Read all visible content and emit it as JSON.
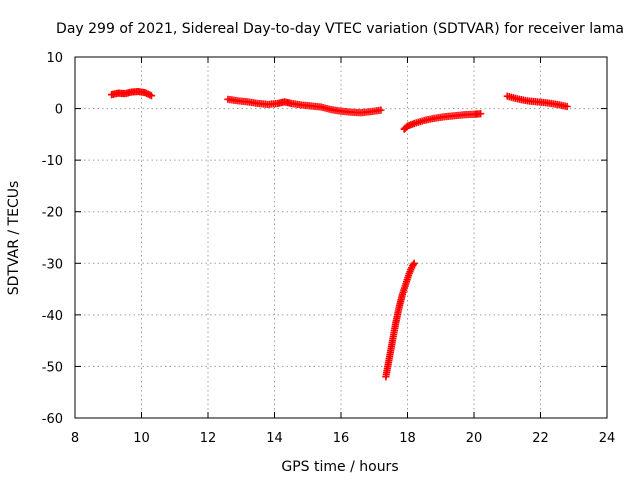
{
  "chart_data": {
    "type": "scatter",
    "title": "Day 299 of 2021, Sidereal Day-to-day VTEC variation (SDTVAR) for receiver lama",
    "xlabel": "GPS time / hours",
    "ylabel": "SDTVAR / TECUs",
    "xlim": [
      8,
      24
    ],
    "ylim": [
      -60,
      10
    ],
    "xticks": [
      8,
      10,
      12,
      14,
      16,
      18,
      20,
      22,
      24
    ],
    "yticks": [
      10,
      0,
      -10,
      -20,
      -30,
      -40,
      -50,
      -60
    ],
    "grid": true,
    "marker": "plus",
    "color": "#ff0000",
    "series": [
      {
        "name": "segment-1",
        "x": [
          9.1,
          9.3,
          9.5,
          9.7,
          9.9,
          10.1,
          10.3
        ],
        "y": [
          2.7,
          3.0,
          2.9,
          3.2,
          3.3,
          3.1,
          2.5
        ]
      },
      {
        "name": "segment-2",
        "x": [
          12.6,
          12.9,
          13.2,
          13.5,
          13.8,
          14.1,
          14.3,
          14.5,
          14.8,
          15.1,
          15.4,
          15.7,
          16.0,
          16.3,
          16.6,
          16.9,
          17.2
        ],
        "y": [
          1.8,
          1.5,
          1.3,
          1.0,
          0.8,
          1.0,
          1.3,
          1.0,
          0.7,
          0.5,
          0.3,
          -0.2,
          -0.5,
          -0.7,
          -0.8,
          -0.6,
          -0.3
        ]
      },
      {
        "name": "segment-3",
        "x": [
          17.9,
          18.0,
          18.2,
          18.5,
          18.8,
          19.1,
          19.4,
          19.7,
          20.0,
          20.2
        ],
        "y": [
          -4.0,
          -3.4,
          -2.9,
          -2.3,
          -1.9,
          -1.6,
          -1.4,
          -1.2,
          -1.1,
          -1.0
        ]
      },
      {
        "name": "segment-4",
        "x": [
          17.35,
          17.45,
          17.55,
          17.65,
          17.75,
          17.85,
          17.95,
          18.05,
          18.15,
          18.2
        ],
        "y": [
          -52.0,
          -48.5,
          -45.0,
          -41.5,
          -38.5,
          -36.0,
          -34.0,
          -32.0,
          -30.5,
          -30.0
        ]
      },
      {
        "name": "segment-5",
        "x": [
          21.0,
          21.3,
          21.6,
          21.9,
          22.2,
          22.5,
          22.8
        ],
        "y": [
          2.4,
          1.9,
          1.5,
          1.3,
          1.1,
          0.8,
          0.4
        ]
      }
    ]
  }
}
